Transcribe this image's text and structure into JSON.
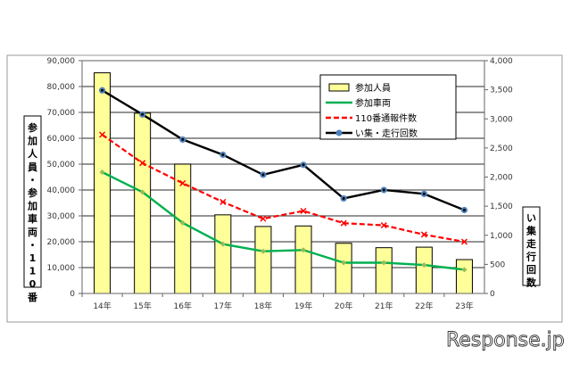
{
  "chart_data": {
    "type": "bar+line",
    "categories": [
      "14年",
      "15年",
      "16年",
      "17年",
      "18年",
      "19年",
      "20年",
      "21年",
      "22年",
      "23年"
    ],
    "left_axis": {
      "label": "参加人員・参加車両・110番",
      "ylim": [
        0,
        90000
      ],
      "ticks": [
        "0",
        "10,000",
        "20,000",
        "30,000",
        "40,000",
        "50,000",
        "60,000",
        "70,000",
        "80,000",
        "90,000"
      ]
    },
    "right_axis": {
      "label": "い集走行回数",
      "ylim": [
        0,
        4000
      ],
      "ticks": [
        "0",
        "500",
        "1,000",
        "1,500",
        "2,000",
        "2,500",
        "3,000",
        "3,500",
        "4,000"
      ]
    },
    "grid": true,
    "legend_position": "top-right",
    "series": [
      {
        "name": "参加人員",
        "type": "bar",
        "axis": "left",
        "color": "#ffff99",
        "values": [
          85300,
          69700,
          50000,
          30400,
          25900,
          26100,
          19400,
          17700,
          17900,
          13100
        ]
      },
      {
        "name": "参加車両",
        "type": "line",
        "axis": "left",
        "color": "#00b050",
        "values": [
          46900,
          39200,
          27300,
          19100,
          16300,
          16800,
          11900,
          11900,
          11000,
          9200
        ]
      },
      {
        "name": "110番通報件数",
        "type": "line",
        "axis": "right",
        "color": "#ff0000",
        "dashed": true,
        "values": [
          2728,
          2240,
          1895,
          1572,
          1285,
          1418,
          1208,
          1171,
          1012,
          889
        ]
      },
      {
        "name": "い集・走行回数",
        "type": "line",
        "axis": "right",
        "color": "#000000",
        "marker_color": "#4f81bd",
        "values": [
          3490,
          3076,
          2645,
          2383,
          2040,
          2210,
          1633,
          1778,
          1711,
          1433
        ]
      }
    ]
  },
  "watermark": "Response.jp"
}
